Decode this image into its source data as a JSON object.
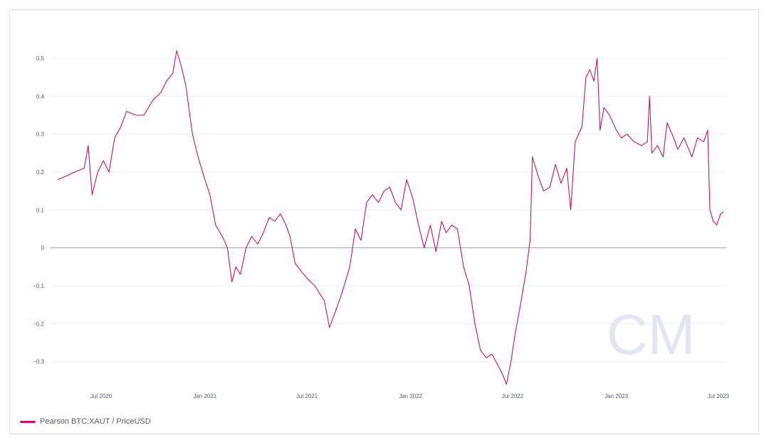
{
  "chart_data": {
    "type": "line",
    "title": "",
    "xlabel": "",
    "ylabel": "",
    "ylim": [
      -0.37,
      0.53
    ],
    "xlim": [
      "2020-04-01",
      "2023-07-15"
    ],
    "yticks": [
      {
        "value": 0.5,
        "label": "0.5"
      },
      {
        "value": 0.4,
        "label": "0.4"
      },
      {
        "value": 0.3,
        "label": "0.3"
      },
      {
        "value": 0.2,
        "label": "0.2"
      },
      {
        "value": 0.1,
        "label": "0.1"
      },
      {
        "value": 0,
        "label": "0"
      },
      {
        "value": -0.1,
        "label": "−0.1"
      },
      {
        "value": -0.2,
        "label": "−0.2"
      },
      {
        "value": -0.3,
        "label": "−0.3"
      }
    ],
    "xticks": [
      {
        "date": "2020-07-01",
        "label": "Jul 2020"
      },
      {
        "date": "2021-01-01",
        "label": "Jan 2021"
      },
      {
        "date": "2021-07-01",
        "label": "Jul 2021"
      },
      {
        "date": "2022-01-01",
        "label": "Jan 2022"
      },
      {
        "date": "2022-07-01",
        "label": "Jul 2022"
      },
      {
        "date": "2023-01-01",
        "label": "Jan 2023"
      },
      {
        "date": "2023-07-01",
        "label": "Jul 2023"
      }
    ],
    "grid": true,
    "legend_position": "bottom-left",
    "series": [
      {
        "name": "Pearson BTC:XAUT / PriceUSD",
        "color": "#c2185b",
        "points": [
          [
            "2020-04-15",
            0.18
          ],
          [
            "2020-05-01",
            0.19
          ],
          [
            "2020-05-15",
            0.2
          ],
          [
            "2020-06-01",
            0.21
          ],
          [
            "2020-06-08",
            0.27
          ],
          [
            "2020-06-15",
            0.14
          ],
          [
            "2020-06-25",
            0.2
          ],
          [
            "2020-07-05",
            0.23
          ],
          [
            "2020-07-15",
            0.2
          ],
          [
            "2020-07-25",
            0.29
          ],
          [
            "2020-08-05",
            0.32
          ],
          [
            "2020-08-15",
            0.36
          ],
          [
            "2020-09-01",
            0.35
          ],
          [
            "2020-09-15",
            0.35
          ],
          [
            "2020-10-01",
            0.39
          ],
          [
            "2020-10-15",
            0.41
          ],
          [
            "2020-10-25",
            0.44
          ],
          [
            "2020-11-05",
            0.46
          ],
          [
            "2020-11-12",
            0.52
          ],
          [
            "2020-11-20",
            0.48
          ],
          [
            "2020-11-28",
            0.43
          ],
          [
            "2020-12-10",
            0.3
          ],
          [
            "2020-12-20",
            0.24
          ],
          [
            "2021-01-01",
            0.18
          ],
          [
            "2021-01-10",
            0.14
          ],
          [
            "2021-01-20",
            0.06
          ],
          [
            "2021-02-01",
            0.03
          ],
          [
            "2021-02-10",
            0.0
          ],
          [
            "2021-02-18",
            -0.09
          ],
          [
            "2021-02-25",
            -0.05
          ],
          [
            "2021-03-05",
            -0.07
          ],
          [
            "2021-03-15",
            0.0
          ],
          [
            "2021-03-25",
            0.03
          ],
          [
            "2021-04-05",
            0.01
          ],
          [
            "2021-04-15",
            0.04
          ],
          [
            "2021-04-25",
            0.08
          ],
          [
            "2021-05-05",
            0.07
          ],
          [
            "2021-05-15",
            0.09
          ],
          [
            "2021-05-25",
            0.06
          ],
          [
            "2021-06-01",
            0.03
          ],
          [
            "2021-06-10",
            -0.04
          ],
          [
            "2021-06-20",
            -0.06
          ],
          [
            "2021-07-01",
            -0.08
          ],
          [
            "2021-07-15",
            -0.1
          ],
          [
            "2021-08-01",
            -0.14
          ],
          [
            "2021-08-10",
            -0.21
          ],
          [
            "2021-08-20",
            -0.17
          ],
          [
            "2021-09-01",
            -0.12
          ],
          [
            "2021-09-15",
            -0.05
          ],
          [
            "2021-09-25",
            0.05
          ],
          [
            "2021-10-05",
            0.02
          ],
          [
            "2021-10-15",
            0.12
          ],
          [
            "2021-10-25",
            0.14
          ],
          [
            "2021-11-05",
            0.12
          ],
          [
            "2021-11-15",
            0.15
          ],
          [
            "2021-11-25",
            0.16
          ],
          [
            "2021-12-05",
            0.12
          ],
          [
            "2021-12-15",
            0.1
          ],
          [
            "2021-12-25",
            0.18
          ],
          [
            "2022-01-05",
            0.13
          ],
          [
            "2022-01-15",
            0.06
          ],
          [
            "2022-01-25",
            0.0
          ],
          [
            "2022-02-05",
            0.06
          ],
          [
            "2022-02-15",
            -0.01
          ],
          [
            "2022-02-25",
            0.07
          ],
          [
            "2022-03-05",
            0.04
          ],
          [
            "2022-03-15",
            0.06
          ],
          [
            "2022-03-25",
            0.05
          ],
          [
            "2022-04-05",
            -0.05
          ],
          [
            "2022-04-15",
            -0.1
          ],
          [
            "2022-04-25",
            -0.2
          ],
          [
            "2022-05-05",
            -0.27
          ],
          [
            "2022-05-15",
            -0.29
          ],
          [
            "2022-05-25",
            -0.28
          ],
          [
            "2022-06-05",
            -0.31
          ],
          [
            "2022-06-15",
            -0.34
          ],
          [
            "2022-06-20",
            -0.36
          ],
          [
            "2022-06-28",
            -0.3
          ],
          [
            "2022-07-05",
            -0.23
          ],
          [
            "2022-07-15",
            -0.15
          ],
          [
            "2022-07-25",
            -0.06
          ],
          [
            "2022-08-01",
            0.02
          ],
          [
            "2022-08-05",
            0.24
          ],
          [
            "2022-08-15",
            0.19
          ],
          [
            "2022-08-25",
            0.15
          ],
          [
            "2022-09-05",
            0.16
          ],
          [
            "2022-09-15",
            0.22
          ],
          [
            "2022-09-25",
            0.17
          ],
          [
            "2022-10-05",
            0.21
          ],
          [
            "2022-10-12",
            0.1
          ],
          [
            "2022-10-20",
            0.28
          ],
          [
            "2022-11-01",
            0.32
          ],
          [
            "2022-11-08",
            0.45
          ],
          [
            "2022-11-15",
            0.47
          ],
          [
            "2022-11-22",
            0.44
          ],
          [
            "2022-11-28",
            0.5
          ],
          [
            "2022-12-03",
            0.31
          ],
          [
            "2022-12-10",
            0.37
          ],
          [
            "2022-12-20",
            0.35
          ],
          [
            "2023-01-01",
            0.31
          ],
          [
            "2023-01-10",
            0.29
          ],
          [
            "2023-01-20",
            0.3
          ],
          [
            "2023-02-01",
            0.28
          ],
          [
            "2023-02-15",
            0.27
          ],
          [
            "2023-02-25",
            0.28
          ],
          [
            "2023-03-01",
            0.4
          ],
          [
            "2023-03-05",
            0.25
          ],
          [
            "2023-03-15",
            0.27
          ],
          [
            "2023-03-25",
            0.24
          ],
          [
            "2023-04-01",
            0.33
          ],
          [
            "2023-04-10",
            0.3
          ],
          [
            "2023-04-20",
            0.26
          ],
          [
            "2023-05-01",
            0.29
          ],
          [
            "2023-05-15",
            0.24
          ],
          [
            "2023-05-25",
            0.29
          ],
          [
            "2023-06-05",
            0.28
          ],
          [
            "2023-06-12",
            0.31
          ],
          [
            "2023-06-16",
            0.1
          ],
          [
            "2023-06-22",
            0.07
          ],
          [
            "2023-06-28",
            0.06
          ],
          [
            "2023-07-05",
            0.09
          ],
          [
            "2023-07-10",
            0.095
          ]
        ]
      }
    ]
  },
  "legend": {
    "label": "Pearson BTC:XAUT / PriceUSD"
  },
  "watermark": {
    "text": "CM",
    "color": "#e3e6f0"
  }
}
